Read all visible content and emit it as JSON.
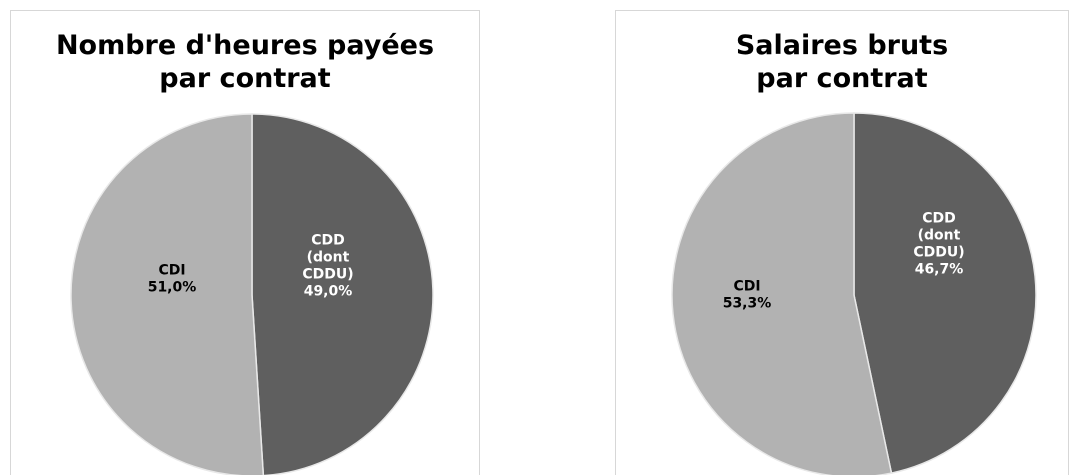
{
  "chart_data": [
    {
      "type": "pie",
      "title_lines": [
        "Nombre d'heures payées",
        "par contrat"
      ],
      "slices": [
        {
          "label_lines": [
            "CDD",
            "(dont",
            "CDDU)"
          ],
          "value_label": "49,0%",
          "value": 49.0,
          "color": "#5f5f5f",
          "text_color": "#ffffff"
        },
        {
          "label_lines": [
            "CDI"
          ],
          "value_label": "51,0%",
          "value": 51.0,
          "color": "#b2b2b2",
          "text_color": "#000000"
        }
      ]
    },
    {
      "type": "pie",
      "title_lines": [
        "Salaires bruts",
        "par contrat"
      ],
      "slices": [
        {
          "label_lines": [
            "CDD",
            "(dont",
            "CDDU)"
          ],
          "value_label": "46,7%",
          "value": 46.7,
          "color": "#5f5f5f",
          "text_color": "#ffffff"
        },
        {
          "label_lines": [
            "CDI"
          ],
          "value_label": "53,3%",
          "value": 53.3,
          "color": "#b2b2b2",
          "text_color": "#000000"
        }
      ]
    }
  ]
}
